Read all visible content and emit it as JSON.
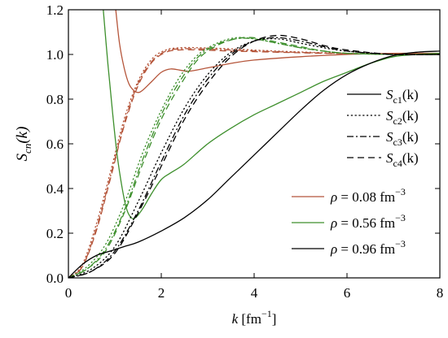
{
  "chart_data": {
    "type": "line",
    "xlabel_var": "k",
    "xlabel_unit": " [fm",
    "xlabel_exp": "−1",
    "xlabel_close": "]",
    "ylabel_var": "S",
    "ylabel_sub": "cn",
    "ylabel_arg": "(k)",
    "xlim": [
      0,
      8
    ],
    "ylim": [
      0,
      1.2
    ],
    "xticks": [
      0,
      2,
      4,
      6,
      8
    ],
    "yticks": [
      0.0,
      0.2,
      0.4,
      0.6,
      0.8,
      1.0,
      1.2
    ],
    "xtick_labels": [
      "0",
      "2",
      "4",
      "6",
      "8"
    ],
    "ytick_labels": [
      "0.0",
      "0.2",
      "0.4",
      "0.6",
      "0.8",
      "1.0",
      "1.2"
    ],
    "grid": false,
    "legend_styles": [
      {
        "S": "S",
        "sub": "c1",
        "arg": "(k)",
        "dash": "solid"
      },
      {
        "S": "S",
        "sub": "c2",
        "arg": "(k)",
        "dash": "dotted"
      },
      {
        "S": "S",
        "sub": "c3",
        "arg": "(k)",
        "dash": "dashdot"
      },
      {
        "S": "S",
        "sub": "c4",
        "arg": "(k)",
        "dash": "dashed"
      }
    ],
    "legend_densities": [
      {
        "rho": "ρ",
        "text": " = 0.08 fm",
        "exp": "−3",
        "color": "#b5553a"
      },
      {
        "rho": "ρ",
        "text": " = 0.56 fm",
        "exp": "−3",
        "color": "#3d8f2c"
      },
      {
        "rho": "ρ",
        "text": " = 0.96 fm",
        "exp": "−3",
        "color": "#000000"
      }
    ],
    "legend_position": "right",
    "series": [
      {
        "density": "0.08",
        "component": "c1",
        "color": "#b5553a",
        "dash": "solid",
        "x": [
          1.02,
          1.1,
          1.2,
          1.3,
          1.4,
          1.5,
          1.6,
          1.8,
          2.0,
          2.2,
          2.4,
          2.6,
          3.0,
          3.5,
          4.0,
          5.0,
          6.0,
          7.0,
          8.0
        ],
        "y": [
          1.2,
          1.05,
          0.94,
          0.87,
          0.84,
          0.83,
          0.84,
          0.88,
          0.92,
          0.935,
          0.93,
          0.925,
          0.94,
          0.96,
          0.975,
          0.99,
          1.0,
          1.005,
          1.005
        ]
      },
      {
        "density": "0.08",
        "component": "c2",
        "color": "#b5553a",
        "dash": "dotted",
        "x": [
          0,
          0.3,
          0.6,
          0.9,
          1.2,
          1.5,
          1.8,
          2.1,
          2.4,
          2.8,
          3.5,
          4.5,
          6.0,
          8.0
        ],
        "y": [
          0.0,
          0.06,
          0.24,
          0.47,
          0.71,
          0.88,
          0.98,
          1.02,
          1.03,
          1.03,
          1.025,
          1.015,
          1.005,
          1.0
        ]
      },
      {
        "density": "0.08",
        "component": "c3",
        "color": "#b5553a",
        "dash": "dashdot",
        "x": [
          0,
          0.3,
          0.6,
          0.9,
          1.2,
          1.5,
          1.8,
          2.1,
          2.4,
          2.8,
          3.5,
          4.5,
          6.0,
          8.0
        ],
        "y": [
          0.0,
          0.05,
          0.22,
          0.45,
          0.69,
          0.87,
          0.97,
          1.015,
          1.025,
          1.025,
          1.02,
          1.012,
          1.004,
          1.0
        ]
      },
      {
        "density": "0.08",
        "component": "c4",
        "color": "#b5553a",
        "dash": "dashed",
        "x": [
          0,
          0.3,
          0.6,
          0.9,
          1.2,
          1.5,
          1.8,
          2.1,
          2.4,
          2.8,
          3.5,
          4.5,
          6.0,
          8.0
        ],
        "y": [
          0.0,
          0.05,
          0.21,
          0.44,
          0.68,
          0.86,
          0.965,
          1.01,
          1.02,
          1.02,
          1.015,
          1.01,
          1.003,
          1.0
        ]
      },
      {
        "density": "0.56",
        "component": "c1",
        "color": "#3d8f2c",
        "dash": "solid",
        "x": [
          0.75,
          0.85,
          0.95,
          1.05,
          1.15,
          1.25,
          1.35,
          1.45,
          1.6,
          1.8,
          2.0,
          2.2,
          2.5,
          3.0,
          3.5,
          4.0,
          4.5,
          5.0,
          5.5,
          6.0,
          6.5,
          7.0,
          7.5,
          8.0
        ],
        "y": [
          1.2,
          0.96,
          0.74,
          0.55,
          0.41,
          0.31,
          0.27,
          0.27,
          0.31,
          0.38,
          0.44,
          0.47,
          0.51,
          0.6,
          0.67,
          0.73,
          0.78,
          0.83,
          0.88,
          0.92,
          0.96,
          0.99,
          1.0,
          1.005
        ]
      },
      {
        "density": "0.56",
        "component": "c2",
        "color": "#3d8f2c",
        "dash": "dotted",
        "x": [
          0,
          0.4,
          0.8,
          1.2,
          1.6,
          2.0,
          2.4,
          2.8,
          3.2,
          3.6,
          4.0,
          4.5,
          5.0,
          5.5,
          6.0,
          7.0,
          8.0
        ],
        "y": [
          0.0,
          0.05,
          0.15,
          0.33,
          0.56,
          0.75,
          0.9,
          1.0,
          1.05,
          1.075,
          1.07,
          1.05,
          1.03,
          1.015,
          1.005,
          1.0,
          1.0
        ]
      },
      {
        "density": "0.56",
        "component": "c3",
        "color": "#3d8f2c",
        "dash": "dashdot",
        "x": [
          0,
          0.4,
          0.8,
          1.2,
          1.6,
          2.0,
          2.4,
          2.8,
          3.2,
          3.6,
          4.0,
          4.5,
          5.0,
          5.5,
          6.0,
          7.0,
          8.0
        ],
        "y": [
          0.0,
          0.04,
          0.13,
          0.3,
          0.53,
          0.73,
          0.88,
          0.99,
          1.045,
          1.07,
          1.07,
          1.05,
          1.03,
          1.015,
          1.005,
          1.0,
          1.0
        ]
      },
      {
        "density": "0.56",
        "component": "c4",
        "color": "#3d8f2c",
        "dash": "dashed",
        "x": [
          0,
          0.4,
          0.8,
          1.2,
          1.6,
          2.0,
          2.4,
          2.8,
          3.2,
          3.6,
          4.0,
          4.5,
          5.0,
          5.5,
          6.0,
          7.0,
          8.0
        ],
        "y": [
          0.0,
          0.04,
          0.12,
          0.29,
          0.51,
          0.71,
          0.86,
          0.98,
          1.04,
          1.07,
          1.075,
          1.055,
          1.035,
          1.015,
          1.005,
          1.0,
          1.0
        ]
      },
      {
        "density": "0.96",
        "component": "c1",
        "color": "#000000",
        "dash": "solid",
        "x": [
          0,
          0.3,
          0.6,
          0.9,
          1.2,
          1.5,
          2.0,
          2.5,
          3.0,
          3.5,
          4.0,
          4.5,
          5.0,
          5.5,
          6.0,
          6.5,
          7.0,
          7.5,
          8.0
        ],
        "y": [
          0.0,
          0.06,
          0.1,
          0.12,
          0.14,
          0.16,
          0.21,
          0.27,
          0.35,
          0.45,
          0.55,
          0.65,
          0.75,
          0.84,
          0.91,
          0.96,
          0.995,
          1.01,
          1.015
        ]
      },
      {
        "density": "0.96",
        "component": "c2",
        "color": "#000000",
        "dash": "dotted",
        "x": [
          0,
          0.5,
          1.0,
          1.5,
          2.0,
          2.5,
          3.0,
          3.5,
          4.0,
          4.5,
          5.0,
          5.5,
          6.0,
          7.0,
          8.0
        ],
        "y": [
          0.0,
          0.04,
          0.14,
          0.34,
          0.56,
          0.76,
          0.91,
          1.01,
          1.06,
          1.07,
          1.05,
          1.03,
          1.015,
          1.0,
          1.0
        ]
      },
      {
        "density": "0.96",
        "component": "c3",
        "color": "#000000",
        "dash": "dashdot",
        "x": [
          0,
          0.5,
          1.0,
          1.5,
          2.0,
          2.5,
          3.0,
          3.5,
          4.0,
          4.5,
          5.0,
          5.5,
          6.0,
          7.0,
          8.0
        ],
        "y": [
          0.0,
          0.03,
          0.12,
          0.3,
          0.52,
          0.73,
          0.89,
          1.0,
          1.06,
          1.075,
          1.06,
          1.035,
          1.015,
          1.0,
          1.0
        ]
      },
      {
        "density": "0.96",
        "component": "c4",
        "color": "#000000",
        "dash": "dashed",
        "x": [
          0,
          0.5,
          1.0,
          1.5,
          2.0,
          2.5,
          3.0,
          3.5,
          4.0,
          4.5,
          5.0,
          5.5,
          6.0,
          7.0,
          8.0
        ],
        "y": [
          0.0,
          0.03,
          0.11,
          0.29,
          0.5,
          0.71,
          0.87,
          0.99,
          1.06,
          1.085,
          1.07,
          1.04,
          1.02,
          1.0,
          1.0
        ]
      }
    ]
  }
}
